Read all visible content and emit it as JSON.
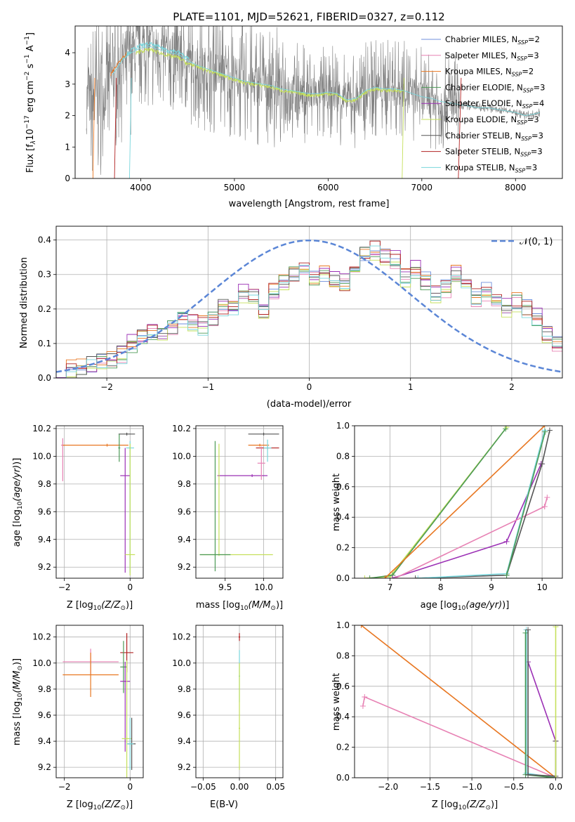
{
  "figure_title": "PLATE=1101, MJD=52621, FIBERID=0327, z=0.112",
  "colors": {
    "chabrier_miles": "#6f8fdc",
    "salpeter_miles": "#e782b4",
    "kroupa_miles": "#e87722",
    "chabrier_elodie": "#4d9a57",
    "salpeter_elodie": "#9b30b5",
    "kroupa_elodie": "#c5e05b",
    "chabrier_stelib": "#555555",
    "salpeter_stelib": "#b22222",
    "kroupa_stelib": "#78d6dc",
    "data_gray": "#808080",
    "normal_curve": "#5b86d6",
    "grid": "#b0b0b0"
  },
  "chart_data": [
    {
      "id": "spectrum",
      "type": "line",
      "title": "PLATE=1101, MJD=52621, FIBERID=0327, z=0.112",
      "xlabel": "wavelength [Angstrom, rest frame]",
      "ylabel": "Flux [f",
      "ylabel_parts": {
        "a": "Flux [f",
        "lam": "λ",
        "b": "10",
        "e1": "−17",
        "c": " erg cm",
        "e2": "−2",
        "d": " s",
        "e3": "−1",
        "f": " A",
        "e4": "−1",
        "g": "]"
      },
      "xlim": [
        3300,
        8500
      ],
      "ylim": [
        0,
        4.85
      ],
      "xticks": [
        "4000",
        "5000",
        "6000",
        "7000",
        "8000"
      ],
      "yticks": [
        "0",
        "1",
        "2",
        "3",
        "4"
      ],
      "grid": false,
      "legend_position": "right",
      "legend": [
        {
          "label": "Chabrier MILES, N",
          "n": "2",
          "color_key": "chabrier_miles"
        },
        {
          "label": "Salpeter MILES, N",
          "n": "3",
          "color_key": "salpeter_miles"
        },
        {
          "label": "Kroupa MILES, N",
          "n": "2",
          "color_key": "kroupa_miles"
        },
        {
          "label": "Chabrier ELODIE, N",
          "n": "3",
          "color_key": "chabrier_elodie"
        },
        {
          "label": "Salpeter ELODIE, N",
          "n": "4",
          "color_key": "salpeter_elodie"
        },
        {
          "label": "Kroupa ELODIE, N",
          "n": "3",
          "color_key": "kroupa_elodie"
        },
        {
          "label": "Chabrier STELIB, N",
          "n": "3",
          "color_key": "chabrier_stelib"
        },
        {
          "label": "Salpeter STELIB, N",
          "n": "3",
          "color_key": "salpeter_stelib"
        },
        {
          "label": "Kroupa STELIB, N",
          "n": "3",
          "color_key": "kroupa_stelib"
        }
      ],
      "legend_sub": "SSP",
      "continuum": {
        "x": [
          3420,
          3500,
          3600,
          3700,
          3800,
          3900,
          4000,
          4100,
          4200,
          4300,
          4400,
          4500,
          4600,
          4700,
          4800,
          4900,
          5000,
          5100,
          5200,
          5300,
          5400,
          5500,
          5600,
          5700,
          5800,
          5900,
          6000,
          6100,
          6200,
          6300,
          6400,
          6500,
          6600,
          6700,
          6800,
          6900,
          7000,
          7100,
          7200,
          7300,
          7400,
          7500,
          7600,
          7700,
          7800,
          7900,
          8000,
          8100,
          8200,
          8260
        ],
        "y": [
          2.5,
          2.55,
          2.7,
          3.3,
          3.75,
          4.0,
          4.15,
          4.2,
          4.1,
          4.0,
          3.95,
          3.75,
          3.6,
          3.5,
          3.4,
          3.3,
          3.2,
          3.1,
          3.05,
          3.0,
          2.95,
          2.85,
          2.8,
          2.75,
          2.7,
          2.7,
          2.75,
          2.7,
          2.5,
          2.55,
          2.8,
          2.9,
          2.85,
          2.85,
          2.8,
          2.7,
          2.6,
          2.55,
          2.45,
          2.4,
          2.35,
          2.3,
          2.25,
          2.25,
          2.2,
          2.15,
          2.1,
          2.0,
          2.05,
          2.1
        ]
      },
      "model_segments": [
        {
          "color_key": "kroupa_stelib",
          "x0": 3780,
          "x1": 4520,
          "offset": 0.08
        },
        {
          "color_key": "kroupa_elodie",
          "x0": 3950,
          "x1": 4550,
          "offset": -0.1
        },
        {
          "color_key": "kroupa_elodie",
          "x0": 4520,
          "x1": 6800,
          "offset": -0.05
        },
        {
          "color_key": "kroupa_miles",
          "x0": 3680,
          "x1": 3850,
          "offset": 0.1
        }
      ]
    },
    {
      "id": "residuals",
      "type": "step",
      "xlabel": "(data-model)/error",
      "ylabel": "Normed distribution",
      "xlim": [
        -2.5,
        2.5
      ],
      "ylim": [
        0,
        0.44
      ],
      "xticks": [
        "−2",
        "−1",
        "0",
        "1",
        "2"
      ],
      "xtick_values": [
        -2,
        -1,
        0,
        1,
        2
      ],
      "yticks": [
        "0.0",
        "0.1",
        "0.2",
        "0.3",
        "0.4"
      ],
      "grid": true,
      "legend": [
        {
          "label": "𝒩(0, 1)",
          "color_key": "normal_curve"
        }
      ],
      "legend_position": "top-right",
      "bin_start": -2.5,
      "bin_width": 0.1,
      "base_values": [
        0.018,
        0.022,
        0.028,
        0.035,
        0.045,
        0.05,
        0.07,
        0.1,
        0.12,
        0.125,
        0.13,
        0.15,
        0.17,
        0.16,
        0.15,
        0.17,
        0.2,
        0.21,
        0.24,
        0.24,
        0.2,
        0.25,
        0.28,
        0.3,
        0.31,
        0.29,
        0.3,
        0.28,
        0.27,
        0.3,
        0.36,
        0.37,
        0.35,
        0.34,
        0.29,
        0.31,
        0.28,
        0.24,
        0.26,
        0.3,
        0.27,
        0.23,
        0.25,
        0.22,
        0.2,
        0.22,
        0.2,
        0.17,
        0.12,
        0.1
      ],
      "series_order": [
        "chabrier_miles",
        "salpeter_miles",
        "kroupa_miles",
        "chabrier_elodie",
        "salpeter_elodie",
        "kroupa_elodie",
        "chabrier_stelib",
        "salpeter_stelib",
        "kroupa_stelib"
      ]
    },
    {
      "id": "age_vs_Z",
      "type": "errorbar",
      "xlabel": "Z [log",
      "ylabel": "age  [log",
      "xlim": [
        -2.25,
        0.4
      ],
      "ylim": [
        9.12,
        10.22
      ],
      "xticks": [
        "−2",
        "0"
      ],
      "xtick_values": [
        -2,
        0
      ],
      "yticks": [
        "9.2",
        "9.4",
        "9.6",
        "9.8",
        "10.0",
        "10.2"
      ],
      "ytick_values": [
        9.2,
        9.4,
        9.6,
        9.8,
        10.0,
        10.2
      ],
      "grid": true,
      "points": [
        {
          "color_key": "salpeter_miles",
          "x": -2.05,
          "y": 10.08,
          "xerr": [
            0.05,
            0.05
          ],
          "yerr": [
            0.26,
            0.05
          ]
        },
        {
          "color_key": "kroupa_miles",
          "x": -0.7,
          "y": 10.08,
          "xerr": [
            1.35,
            0.65
          ],
          "yerr": [
            0.01,
            0.01
          ]
        },
        {
          "color_key": "chabrier_stelib",
          "x": -0.1,
          "y": 10.16,
          "xerr": [
            0.25,
            0.25
          ],
          "yerr": [
            0.01,
            0.01
          ]
        },
        {
          "color_key": "kroupa_stelib",
          "x": 0.0,
          "y": 10.06,
          "xerr": [
            0.12,
            0.12
          ],
          "yerr": [
            0.9,
            0.05
          ]
        },
        {
          "color_key": "salpeter_elodie",
          "x": -0.15,
          "y": 9.86,
          "xerr": [
            0.15,
            0.15
          ],
          "yerr": [
            0.7,
            0.2
          ]
        },
        {
          "color_key": "kroupa_elodie",
          "x": 0.0,
          "y": 9.29,
          "xerr": [
            0.15,
            0.15
          ],
          "yerr": [
            0.15,
            0.8
          ]
        },
        {
          "color_key": "chabrier_elodie",
          "x": -0.33,
          "y": 10.06,
          "xerr": [
            0.03,
            0.03
          ],
          "yerr": [
            0.1,
            0.1
          ]
        }
      ]
    },
    {
      "id": "age_vs_mass",
      "type": "errorbar",
      "xlabel": "mass [log",
      "xlim": [
        9.12,
        10.25
      ],
      "ylim": [
        9.12,
        10.22
      ],
      "xticks": [
        "9.5",
        "10.0"
      ],
      "xtick_values": [
        9.5,
        10.0
      ],
      "yticks": [
        "9.2",
        "9.4",
        "9.6",
        "9.8",
        "10.0",
        "10.2"
      ],
      "ytick_values": [
        9.2,
        9.4,
        9.6,
        9.8,
        10.0,
        10.2
      ],
      "grid": true,
      "points": [
        {
          "color_key": "chabrier_stelib",
          "x": 10.0,
          "y": 10.16,
          "xerr": [
            0.2,
            0.2
          ],
          "yerr": [
            0.01,
            0.01
          ]
        },
        {
          "color_key": "kroupa_miles",
          "x": 9.95,
          "y": 10.08,
          "xerr": [
            0.15,
            0.12
          ],
          "yerr": [
            0.01,
            0.01
          ]
        },
        {
          "color_key": "salpeter_stelib",
          "x": 10.05,
          "y": 10.06,
          "xerr": [
            0.15,
            0.15
          ],
          "yerr": [
            0.01,
            0.01
          ]
        },
        {
          "color_key": "kroupa_stelib",
          "x": 10.05,
          "y": 10.06,
          "xerr": [
            0.05,
            0.05
          ],
          "yerr": [
            0.1,
            0.06
          ]
        },
        {
          "color_key": "salpeter_elodie",
          "x": 9.85,
          "y": 9.86,
          "xerr": [
            0.45,
            0.2
          ],
          "yerr": [
            0.01,
            0.01
          ]
        },
        {
          "color_key": "kroupa_elodie",
          "x": 9.42,
          "y": 9.29,
          "xerr": [
            0.25,
            0.7
          ],
          "yerr": [
            0.01,
            0.8
          ]
        },
        {
          "color_key": "chabrier_elodie",
          "x": 9.37,
          "y": 9.29,
          "xerr": [
            0.2,
            0.2
          ],
          "yerr": [
            0.12,
            0.82
          ]
        },
        {
          "color_key": "salpeter_miles",
          "x": 9.97,
          "y": 9.95,
          "xerr": [
            0.05,
            0.05
          ],
          "yerr": [
            0.12,
            0.12
          ]
        }
      ]
    },
    {
      "id": "weight_vs_age",
      "type": "line",
      "xlabel": "age  [log",
      "ylabel": "mass weight",
      "xlim": [
        6.3,
        10.4
      ],
      "ylim": [
        0,
        1
      ],
      "xticks": [
        "7",
        "8",
        "9",
        "10"
      ],
      "xtick_values": [
        7,
        8,
        9,
        10
      ],
      "yticks": [
        "0.0",
        "0.2",
        "0.4",
        "0.6",
        "0.8",
        "1.0"
      ],
      "ytick_values": [
        0,
        0.2,
        0.4,
        0.6,
        0.8,
        1.0
      ],
      "grid": true,
      "series": [
        {
          "color_key": "kroupa_elodie",
          "x": [
            6.5,
            7.0,
            9.3
          ],
          "y": [
            0.0,
            0.01,
            0.99
          ]
        },
        {
          "color_key": "chabrier_elodie",
          "x": [
            6.6,
            7.05,
            9.28
          ],
          "y": [
            0.0,
            0.02,
            0.98
          ]
        },
        {
          "color_key": "kroupa_miles",
          "x": [
            6.9,
            10.05
          ],
          "y": [
            0.0,
            1.0
          ]
        },
        {
          "color_key": "salpeter_elodie",
          "x": [
            7.05,
            9.3,
            9.98
          ],
          "y": [
            0.0,
            0.24,
            0.75
          ]
        },
        {
          "color_key": "salpeter_miles",
          "x": [
            7.1,
            10.05
          ],
          "y": [
            0.0,
            0.47
          ]
        },
        {
          "color_key": "salpeter_miles",
          "x": [
            10.05,
            10.1
          ],
          "y": [
            0.47,
            0.53
          ]
        },
        {
          "color_key": "chabrier_stelib",
          "x": [
            7.5,
            9.3,
            10.0,
            10.15
          ],
          "y": [
            0.0,
            0.02,
            0.75,
            0.97
          ]
        },
        {
          "color_key": "kroupa_stelib",
          "x": [
            7.55,
            9.3,
            10.05
          ],
          "y": [
            0.0,
            0.03,
            0.97
          ]
        },
        {
          "color_key": "chabrier_elodie",
          "x": [
            9.3,
            10.06
          ],
          "y": [
            0.02,
            0.96
          ]
        }
      ]
    },
    {
      "id": "mass_vs_Z",
      "type": "errorbar",
      "xlabel": "Z [log",
      "ylabel": "mass [log",
      "xlim": [
        -2.25,
        0.4
      ],
      "ylim": [
        9.12,
        10.29
      ],
      "xticks": [
        "−2",
        "0"
      ],
      "xtick_values": [
        -2,
        0
      ],
      "yticks": [
        "9.2",
        "9.4",
        "9.6",
        "9.8",
        "10.0",
        "10.2"
      ],
      "ytick_values": [
        9.2,
        9.4,
        9.6,
        9.8,
        10.0,
        10.2
      ],
      "grid": true,
      "points": [
        {
          "color_key": "salpeter_miles",
          "x": -1.2,
          "y": 10.01,
          "xerr": [
            0.85,
            0.85
          ],
          "yerr": [
            0.1,
            0.1
          ]
        },
        {
          "color_key": "kroupa_miles",
          "x": -1.2,
          "y": 9.91,
          "xerr": [
            0.85,
            0.85
          ],
          "yerr": [
            0.17,
            0.17
          ]
        },
        {
          "color_key": "salpeter_stelib",
          "x": -0.1,
          "y": 10.08,
          "xerr": [
            0.2,
            0.2
          ],
          "yerr": [
            0.15,
            0.15
          ]
        },
        {
          "color_key": "chabrier_elodie",
          "x": -0.2,
          "y": 9.97,
          "xerr": [
            0.1,
            0.1
          ],
          "yerr": [
            0.2,
            0.2
          ]
        },
        {
          "color_key": "salpeter_elodie",
          "x": -0.15,
          "y": 9.86,
          "xerr": [
            0.15,
            0.15
          ],
          "yerr": [
            0.54,
            0.15
          ]
        },
        {
          "color_key": "kroupa_elodie",
          "x": -0.1,
          "y": 9.42,
          "xerr": [
            0.15,
            0.15
          ],
          "yerr": [
            0.6,
            0.6
          ]
        },
        {
          "color_key": "chabrier_stelib",
          "x": 0.05,
          "y": 9.38,
          "xerr": [
            0.12,
            0.12
          ],
          "yerr": [
            0.2,
            0.2
          ]
        },
        {
          "color_key": "kroupa_stelib",
          "x": 0.0,
          "y": 9.38,
          "xerr": [
            0.1,
            0.1
          ],
          "yerr": [
            0.2,
            0.2
          ]
        }
      ]
    },
    {
      "id": "mass_vs_ebv",
      "type": "errorbar",
      "xlabel": "E(B-V)",
      "xlim": [
        -0.06,
        0.06
      ],
      "ylim": [
        9.12,
        10.29
      ],
      "xticks": [
        "−0.05",
        "0.00",
        "0.05"
      ],
      "xtick_values": [
        -0.05,
        0,
        0.05
      ],
      "yticks": [
        "9.2",
        "9.4",
        "9.6",
        "9.8",
        "10.0",
        "10.2"
      ],
      "ytick_values": [
        9.2,
        9.4,
        9.6,
        9.8,
        10.0,
        10.2
      ],
      "grid": true,
      "points": [
        {
          "color_key": "salpeter_stelib",
          "x": 0.0,
          "y": 10.2,
          "xerr": [
            0.001,
            0.001
          ],
          "yerr": [
            0.03,
            0.03
          ]
        },
        {
          "color_key": "kroupa_stelib",
          "x": 0.0,
          "y": 9.9,
          "xerr": [
            0.001,
            0.001
          ],
          "yerr": [
            0.2,
            0.2
          ]
        },
        {
          "color_key": "kroupa_elodie",
          "x": 0.0,
          "y": 9.5,
          "xerr": [
            0.001,
            0.001
          ],
          "yerr": [
            0.32,
            0.5
          ]
        }
      ]
    },
    {
      "id": "weight_vs_Z",
      "type": "line",
      "xlabel": "Z [log",
      "ylabel": "mass weight",
      "xlim": [
        -2.4,
        0.08
      ],
      "ylim": [
        0,
        1
      ],
      "xticks": [
        "−2.0",
        "−1.5",
        "−1.0",
        "−0.5",
        "0.0"
      ],
      "xtick_values": [
        -2.0,
        -1.5,
        -1.0,
        -0.5,
        0.0
      ],
      "yticks": [
        "0.0",
        "0.2",
        "0.4",
        "0.6",
        "0.8",
        "1.0"
      ],
      "ytick_values": [
        0,
        0.2,
        0.4,
        0.6,
        0.8,
        1.0
      ],
      "grid": true,
      "series": [
        {
          "color_key": "kroupa_miles",
          "x": [
            -2.32,
            0.0
          ],
          "y": [
            1.0,
            0.0
          ]
        },
        {
          "color_key": "salpeter_miles",
          "x": [
            -2.3,
            -2.28,
            0.0
          ],
          "y": [
            0.47,
            0.53,
            0.0
          ]
        },
        {
          "color_key": "salpeter_elodie",
          "x": [
            -0.33,
            0.0
          ],
          "y": [
            0.76,
            0.24
          ]
        },
        {
          "color_key": "kroupa_stelib",
          "x": [
            -0.35,
            -0.35,
            0.0
          ],
          "y": [
            0.97,
            0.03,
            0.0
          ]
        },
        {
          "color_key": "chabrier_elodie",
          "x": [
            -0.36,
            -0.36,
            0.0
          ],
          "y": [
            0.95,
            0.02,
            0.0
          ]
        },
        {
          "color_key": "chabrier_stelib",
          "x": [
            -0.33,
            -0.33,
            0.0,
            0.0
          ],
          "y": [
            0.97,
            0.02,
            0.01,
            0.24
          ]
        },
        {
          "color_key": "kroupa_elodie",
          "x": [
            0.0,
            0.0
          ],
          "y": [
            0.0,
            0.99
          ]
        }
      ]
    }
  ],
  "label_fragments": {
    "age_unit": "age  [log",
    "log_sub": "10",
    "age_ital": "(age/yr)",
    "mass_ital": "(M/M",
    "z_ital": "(Z/Z",
    "sun": "⊙",
    "close": ")]",
    "close2": ")"
  }
}
